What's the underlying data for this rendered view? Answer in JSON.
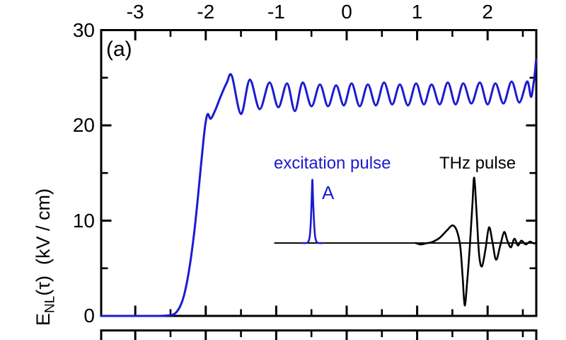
{
  "panel_label": "(a)",
  "colors": {
    "curve_blue": "#1b1bd0",
    "ink_black": "#000000",
    "background": "#ffffff"
  },
  "labels": {
    "excitation_pulse": "excitation pulse",
    "thz_pulse": "THz pulse",
    "pulse_a": "A"
  },
  "y_axis_label": {
    "symbol": "E",
    "subscript": "NL",
    "tail": "(τ)  (kV / cm)"
  },
  "chart_data": {
    "type": "line",
    "title": "",
    "xlabel": "",
    "ylabel": "E_NL(τ) (kV / cm)",
    "grid": false,
    "xlim": [
      -3.48,
      2.69
    ],
    "ylim": [
      0,
      30
    ],
    "x_tick_side": "top",
    "x_major_ticks": [
      -3,
      -2,
      -1,
      0,
      1,
      2
    ],
    "x_minor_ticks": [
      -2.5,
      -1.5,
      -0.5,
      0.5,
      1.5,
      2.5
    ],
    "y_major_ticks": [
      0,
      10,
      20,
      30
    ],
    "y_minor_ticks": [
      5,
      15,
      25
    ],
    "series": [
      {
        "id": "inset_baseline",
        "name": "inset baseline",
        "color": "#000000",
        "width": 2,
        "smooth": false,
        "points": [
          [
            -1.02,
            7.65
          ],
          [
            2.69,
            7.65
          ]
        ]
      },
      {
        "id": "excitation_pulse",
        "name": "excitation pulse (A)",
        "color": "#1b1bd0",
        "width": 2.6,
        "smooth": true,
        "points": [
          [
            -0.63,
            7.65
          ],
          [
            -0.57,
            7.66
          ],
          [
            -0.545,
            7.78
          ],
          [
            -0.525,
            8.3
          ],
          [
            -0.51,
            9.7
          ],
          [
            -0.497,
            12.2
          ],
          [
            -0.487,
            14.3
          ],
          [
            -0.477,
            12.2
          ],
          [
            -0.462,
            9.7
          ],
          [
            -0.447,
            8.3
          ],
          [
            -0.427,
            7.78
          ],
          [
            -0.4,
            7.66
          ],
          [
            -0.34,
            7.65
          ]
        ]
      },
      {
        "id": "thz_pulse",
        "name": "THz pulse",
        "color": "#000000",
        "width": 2.6,
        "smooth": true,
        "points": [
          [
            0.98,
            7.65
          ],
          [
            1.05,
            7.5
          ],
          [
            1.13,
            7.62
          ],
          [
            1.22,
            7.78
          ],
          [
            1.32,
            8.2
          ],
          [
            1.42,
            8.95
          ],
          [
            1.5,
            9.5
          ],
          [
            1.56,
            9.0
          ],
          [
            1.61,
            7.4
          ],
          [
            1.645,
            4.2
          ],
          [
            1.675,
            1.1
          ],
          [
            1.71,
            3.6
          ],
          [
            1.75,
            7.6
          ],
          [
            1.785,
            11.8
          ],
          [
            1.81,
            14.5
          ],
          [
            1.845,
            10.6
          ],
          [
            1.88,
            6.4
          ],
          [
            1.92,
            5.2
          ],
          [
            1.97,
            7.0
          ],
          [
            2.02,
            9.3
          ],
          [
            2.07,
            7.7
          ],
          [
            2.12,
            5.9
          ],
          [
            2.18,
            7.4
          ],
          [
            2.235,
            8.8
          ],
          [
            2.28,
            7.9
          ],
          [
            2.33,
            7.2
          ],
          [
            2.38,
            8.1
          ],
          [
            2.43,
            7.4
          ],
          [
            2.48,
            7.9
          ],
          [
            2.54,
            7.5
          ],
          [
            2.6,
            7.8
          ],
          [
            2.65,
            7.62
          ],
          [
            2.69,
            7.65
          ]
        ]
      },
      {
        "id": "main",
        "name": "E_NL(τ) nonlinear signal",
        "color": "#1b1bd0",
        "width": 3,
        "smooth": true,
        "points": [
          [
            -3.48,
            0
          ],
          [
            -3.3,
            0
          ],
          [
            -3.1,
            0
          ],
          [
            -2.9,
            0
          ],
          [
            -2.75,
            0
          ],
          [
            -2.62,
            0.01
          ],
          [
            -2.53,
            0.05
          ],
          [
            -2.46,
            0.15
          ],
          [
            -2.41,
            0.45
          ],
          [
            -2.36,
            1.05
          ],
          [
            -2.31,
            2.1
          ],
          [
            -2.26,
            3.8
          ],
          [
            -2.21,
            6.1
          ],
          [
            -2.16,
            9.0
          ],
          [
            -2.11,
            12.5
          ],
          [
            -2.07,
            15.6
          ],
          [
            -2.03,
            18.6
          ],
          [
            -2.0,
            20.4
          ],
          [
            -1.97,
            21.2
          ],
          [
            -1.93,
            20.7
          ],
          [
            -1.87,
            21.5
          ],
          [
            -1.79,
            23.0
          ],
          [
            -1.7,
            24.5
          ],
          [
            -1.63,
            25.2
          ],
          [
            -1.5,
            21.2
          ],
          [
            -1.375,
            24.8
          ],
          [
            -1.235,
            21.7
          ],
          [
            -1.095,
            24.5
          ],
          [
            -0.97,
            21.9
          ],
          [
            -0.845,
            24.4
          ],
          [
            -0.735,
            21.5
          ],
          [
            -0.625,
            24.5
          ],
          [
            -0.5,
            22.0
          ],
          [
            -0.38,
            24.3
          ],
          [
            -0.265,
            22.0
          ],
          [
            -0.15,
            24.2
          ],
          [
            -0.04,
            22.1
          ],
          [
            0.07,
            24.4
          ],
          [
            0.185,
            22.0
          ],
          [
            0.3,
            24.3
          ],
          [
            0.415,
            22.1
          ],
          [
            0.53,
            24.5
          ],
          [
            0.645,
            22.2
          ],
          [
            0.755,
            24.3
          ],
          [
            0.87,
            22.1
          ],
          [
            0.985,
            24.4
          ],
          [
            1.095,
            22.2
          ],
          [
            1.205,
            24.3
          ],
          [
            1.32,
            22.2
          ],
          [
            1.435,
            24.5
          ],
          [
            1.545,
            22.2
          ],
          [
            1.655,
            24.4
          ],
          [
            1.77,
            22.3
          ],
          [
            1.89,
            24.5
          ],
          [
            2.0,
            22.2
          ],
          [
            2.11,
            24.4
          ],
          [
            2.225,
            22.3
          ],
          [
            2.34,
            24.6
          ],
          [
            2.45,
            22.4
          ],
          [
            2.56,
            24.6
          ],
          [
            2.615,
            23.0
          ],
          [
            2.648,
            24.2
          ],
          [
            2.668,
            25.3
          ],
          [
            2.688,
            26.9
          ]
        ]
      }
    ]
  }
}
